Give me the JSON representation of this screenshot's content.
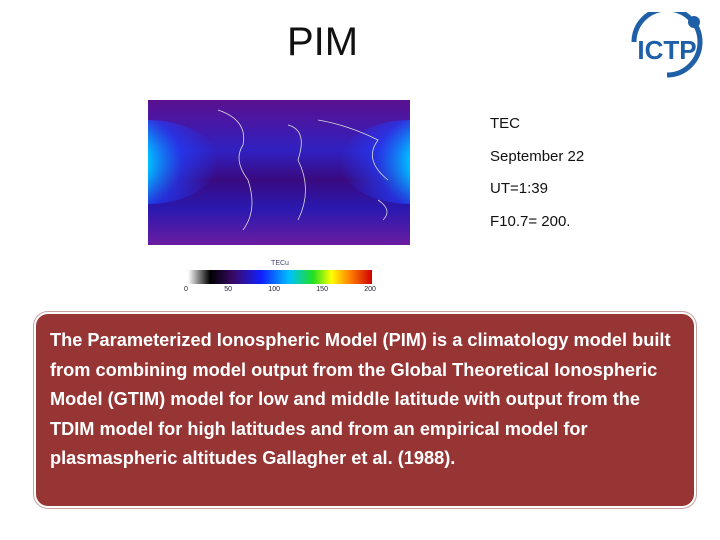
{
  "header": {
    "title": "PIM",
    "logo": "ICTP"
  },
  "figure": {
    "colorbar_label": "TECu",
    "colorbar_ticks": [
      "0",
      "50",
      "100",
      "150",
      "200"
    ]
  },
  "details": [
    "TEC",
    "September 22",
    "UT=1:39",
    "F10.7= 200."
  ],
  "body": "The Parameterized Ionospheric Model (PIM) is a climatology model built from combining model output from the Global Theoretical Ionospheric Model (GTIM) model for low and middle latitude with output from the TDIM model for high latitudes and from an empirical model for plasmaspheric altitudes Gallagher et al. (1988)."
}
